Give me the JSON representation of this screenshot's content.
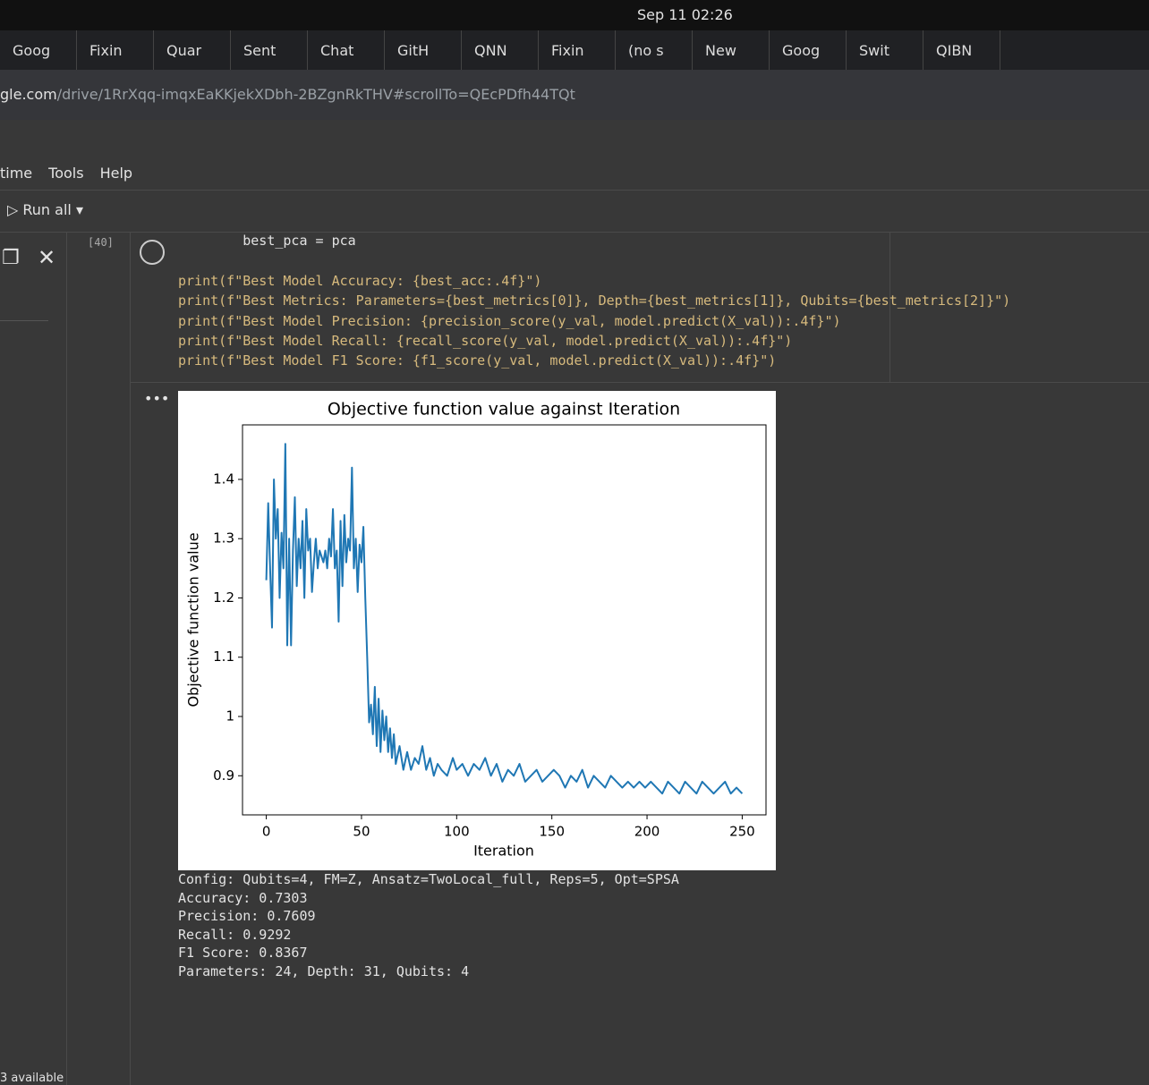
{
  "topbar": {
    "clock": "Sep 11 02:26"
  },
  "tabs": [
    "Goog",
    "Fixin",
    "Quar",
    "Sent",
    "Chat",
    "GitH",
    "QNN",
    "Fixin",
    "(no s",
    "New",
    "Goog",
    "Swit",
    "QIBN"
  ],
  "address": {
    "host": "gle.com",
    "path": "/drive/1RrXqq-imqxEaKKjekXDbh-2BZgnRkTHV#scrollTo=QEcPDfh44TQt"
  },
  "menu": [
    "time",
    "Tools",
    "Help"
  ],
  "toolbar": {
    "run_all": "Run all"
  },
  "cell": {
    "number": "[40]",
    "code": [
      "        best_pca = pca",
      "",
      "print(f\"Best Model Accuracy: {best_acc:.4f}\")",
      "print(f\"Best Metrics: Parameters={best_metrics[0]}, Depth={best_metrics[1]}, Qubits={best_metrics[2]}\")",
      "print(f\"Best Model Precision: {precision_score(y_val, model.predict(X_val)):.4f}\")",
      "print(f\"Best Model Recall: {recall_score(y_val, model.predict(X_val)):.4f}\")",
      "print(f\"Best Model F1 Score: {f1_score(y_val, model.predict(X_val)):.4f}\")"
    ],
    "output": [
      "Config: Qubits=4, FM=Z, Ansatz=TwoLocal_full, Reps=5, Opt=SPSA",
      "Accuracy: 0.7303",
      "Precision: 0.7609",
      "Recall: 0.9292",
      "F1 Score: 0.8367",
      "Parameters: 24, Depth: 31, Qubits: 4"
    ]
  },
  "sidebar": {
    "footer": "3 available"
  },
  "chart_data": {
    "type": "line",
    "title": "Objective function value against Iteration",
    "x_label": "Iteration",
    "y_label": "Objective function value",
    "x": [
      0,
      1,
      2,
      3,
      4,
      5,
      6,
      7,
      8,
      9,
      10,
      11,
      12,
      13,
      14,
      15,
      16,
      17,
      18,
      19,
      20,
      21,
      22,
      23,
      24,
      25,
      26,
      27,
      28,
      29,
      30,
      31,
      32,
      33,
      34,
      35,
      36,
      37,
      38,
      39,
      40,
      41,
      42,
      43,
      44,
      45,
      46,
      47,
      48,
      49,
      50,
      51,
      52,
      53,
      54,
      55,
      56,
      57,
      58,
      59,
      60,
      61,
      62,
      63,
      64,
      65,
      66,
      67,
      68,
      70,
      72,
      74,
      76,
      78,
      80,
      82,
      84,
      86,
      88,
      90,
      92,
      95,
      98,
      100,
      103,
      106,
      109,
      112,
      115,
      118,
      121,
      124,
      127,
      130,
      133,
      136,
      139,
      142,
      145,
      148,
      151,
      154,
      157,
      160,
      163,
      166,
      169,
      172,
      175,
      178,
      181,
      184,
      187,
      190,
      193,
      196,
      199,
      202,
      205,
      208,
      211,
      214,
      217,
      220,
      223,
      226,
      229,
      232,
      235,
      238,
      241,
      244,
      247,
      250
    ],
    "series": [
      {
        "name": "objective",
        "color": "#1f77b4",
        "values": [
          1.23,
          1.36,
          1.25,
          1.15,
          1.4,
          1.3,
          1.35,
          1.2,
          1.31,
          1.25,
          1.46,
          1.12,
          1.3,
          1.12,
          1.28,
          1.37,
          1.22,
          1.3,
          1.25,
          1.33,
          1.2,
          1.35,
          1.28,
          1.3,
          1.21,
          1.26,
          1.3,
          1.25,
          1.28,
          1.27,
          1.26,
          1.28,
          1.25,
          1.3,
          1.27,
          1.35,
          1.25,
          1.28,
          1.16,
          1.33,
          1.22,
          1.34,
          1.26,
          1.3,
          1.28,
          1.42,
          1.25,
          1.3,
          1.21,
          1.29,
          1.26,
          1.32,
          1.2,
          1.1,
          0.99,
          1.02,
          0.97,
          1.05,
          0.95,
          1.03,
          0.94,
          1.01,
          0.96,
          1.0,
          0.94,
          0.98,
          0.93,
          0.97,
          0.92,
          0.95,
          0.91,
          0.94,
          0.91,
          0.93,
          0.92,
          0.95,
          0.91,
          0.93,
          0.9,
          0.92,
          0.91,
          0.9,
          0.93,
          0.91,
          0.92,
          0.9,
          0.92,
          0.91,
          0.93,
          0.9,
          0.92,
          0.89,
          0.91,
          0.9,
          0.92,
          0.89,
          0.9,
          0.91,
          0.89,
          0.9,
          0.91,
          0.9,
          0.88,
          0.9,
          0.89,
          0.91,
          0.88,
          0.9,
          0.89,
          0.88,
          0.9,
          0.89,
          0.88,
          0.89,
          0.88,
          0.89,
          0.88,
          0.89,
          0.88,
          0.87,
          0.89,
          0.88,
          0.87,
          0.89,
          0.88,
          0.87,
          0.89,
          0.88,
          0.87,
          0.88,
          0.89,
          0.87,
          0.88,
          0.87
        ]
      }
    ],
    "xlim": [
      -12.5,
      262.5
    ],
    "ylim": [
      0.834,
      1.492
    ],
    "xticks": [
      0,
      50,
      100,
      150,
      200,
      250
    ],
    "yticks": [
      0.9,
      1.0,
      1.1,
      1.2,
      1.3,
      1.4
    ]
  }
}
